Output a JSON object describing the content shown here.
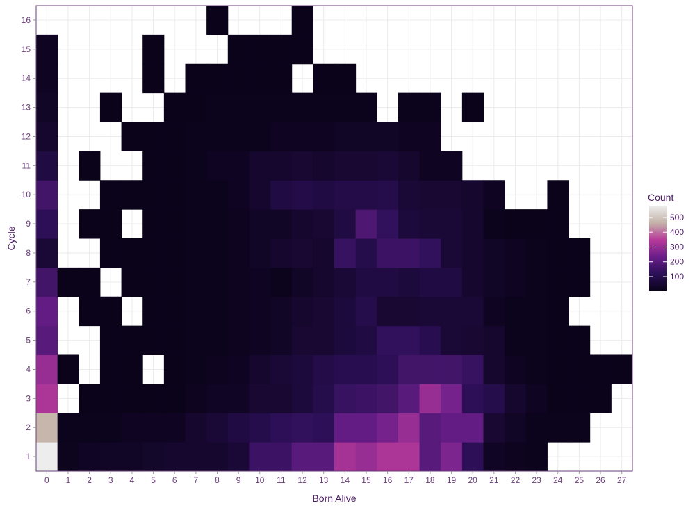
{
  "chart_data": {
    "type": "heatmap",
    "xlabel": "Born Alive",
    "ylabel": "Cycle",
    "x_categories": [
      "0",
      "1",
      "2",
      "3",
      "4",
      "5",
      "6",
      "7",
      "8",
      "9",
      "10",
      "11",
      "12",
      "13",
      "14",
      "15",
      "16",
      "17",
      "18",
      "19",
      "20",
      "21",
      "22",
      "23",
      "24",
      "25",
      "26",
      "27"
    ],
    "y_categories": [
      "1",
      "2",
      "3",
      "4",
      "5",
      "6",
      "7",
      "8",
      "9",
      "10",
      "11",
      "12",
      "13",
      "14",
      "15",
      "16"
    ],
    "grid": true,
    "legend": {
      "title": "Count",
      "position": "right",
      "ticks": [
        "100",
        "200",
        "300",
        "400",
        "500"
      ],
      "range": [
        1,
        580
      ]
    },
    "colors": [
      "#0a0318",
      "#2a0f55",
      "#6a1e8a",
      "#b83a9a",
      "#c4b3a8",
      "#ededed"
    ],
    "panel_border_color": "#6a3d7a",
    "missing_color": "#ffffff",
    "rows": [
      {
        "y": "1",
        "values": [
          580,
          12,
          25,
          28,
          28,
          35,
          40,
          40,
          40,
          60,
          150,
          150,
          200,
          200,
          320,
          300,
          330,
          330,
          200,
          260,
          120,
          25,
          15,
          10,
          null,
          null,
          null,
          null
        ]
      },
      {
        "y": "2",
        "values": [
          470,
          8,
          8,
          8,
          20,
          20,
          20,
          40,
          60,
          80,
          100,
          120,
          130,
          120,
          220,
          220,
          250,
          300,
          200,
          220,
          220,
          50,
          30,
          10,
          8,
          8,
          null,
          null
        ]
      },
      {
        "y": "3",
        "values": [
          330,
          null,
          5,
          5,
          5,
          5,
          5,
          15,
          25,
          25,
          50,
          50,
          70,
          100,
          140,
          150,
          160,
          200,
          300,
          250,
          120,
          100,
          40,
          20,
          5,
          5,
          5,
          null
        ]
      },
      {
        "y": "4",
        "values": [
          300,
          3,
          null,
          5,
          5,
          null,
          5,
          10,
          15,
          20,
          40,
          60,
          70,
          90,
          110,
          110,
          120,
          160,
          160,
          160,
          140,
          40,
          20,
          10,
          5,
          5,
          5,
          5
        ]
      },
      {
        "y": "5",
        "values": [
          200,
          null,
          null,
          5,
          5,
          5,
          5,
          10,
          10,
          15,
          20,
          30,
          50,
          50,
          70,
          80,
          130,
          130,
          110,
          60,
          50,
          40,
          10,
          10,
          5,
          5,
          null,
          null
        ]
      },
      {
        "y": "6",
        "values": [
          220,
          null,
          5,
          5,
          null,
          5,
          5,
          10,
          10,
          15,
          20,
          30,
          40,
          50,
          70,
          100,
          50,
          50,
          60,
          60,
          60,
          20,
          10,
          10,
          5,
          null,
          null,
          null
        ]
      },
      {
        "y": "7",
        "values": [
          160,
          5,
          5,
          null,
          5,
          5,
          5,
          10,
          10,
          15,
          20,
          10,
          30,
          40,
          60,
          80,
          80,
          70,
          80,
          80,
          40,
          30,
          20,
          10,
          5,
          5,
          null,
          null
        ]
      },
      {
        "y": "8",
        "values": [
          60,
          null,
          null,
          5,
          5,
          5,
          5,
          10,
          10,
          15,
          30,
          40,
          50,
          40,
          140,
          100,
          150,
          150,
          130,
          60,
          40,
          30,
          20,
          10,
          5,
          5,
          null,
          null
        ]
      },
      {
        "y": "9",
        "values": [
          120,
          null,
          5,
          5,
          null,
          5,
          5,
          10,
          10,
          15,
          30,
          30,
          40,
          50,
          80,
          180,
          130,
          70,
          60,
          60,
          40,
          10,
          5,
          5,
          5,
          null,
          null,
          null
        ]
      },
      {
        "y": "10",
        "values": [
          160,
          null,
          null,
          5,
          5,
          5,
          5,
          10,
          10,
          20,
          40,
          80,
          90,
          80,
          90,
          90,
          100,
          60,
          50,
          50,
          40,
          20,
          null,
          null,
          5,
          null,
          null,
          null
        ]
      },
      {
        "y": "11",
        "values": [
          80,
          null,
          5,
          null,
          null,
          5,
          5,
          10,
          20,
          20,
          40,
          40,
          50,
          40,
          50,
          50,
          60,
          40,
          20,
          20,
          null,
          null,
          null,
          null,
          null,
          null,
          null,
          null
        ]
      },
      {
        "y": "12",
        "values": [
          40,
          null,
          null,
          null,
          5,
          5,
          5,
          10,
          10,
          10,
          10,
          20,
          20,
          20,
          30,
          30,
          30,
          20,
          20,
          null,
          null,
          null,
          null,
          null,
          null,
          null,
          null,
          null
        ]
      },
      {
        "y": "13",
        "values": [
          30,
          null,
          null,
          5,
          null,
          null,
          5,
          5,
          10,
          10,
          10,
          10,
          10,
          10,
          10,
          10,
          null,
          10,
          10,
          null,
          5,
          null,
          null,
          null,
          null,
          null,
          null,
          null
        ]
      },
      {
        "y": "14",
        "values": [
          20,
          null,
          null,
          null,
          null,
          5,
          null,
          5,
          5,
          5,
          5,
          5,
          null,
          5,
          5,
          null,
          null,
          null,
          null,
          null,
          null,
          null,
          null,
          null,
          null,
          null,
          null,
          null
        ]
      },
      {
        "y": "15",
        "values": [
          20,
          null,
          null,
          null,
          null,
          5,
          null,
          null,
          null,
          5,
          5,
          5,
          5,
          null,
          null,
          null,
          null,
          null,
          null,
          null,
          null,
          null,
          null,
          null,
          null,
          null,
          null,
          null
        ]
      },
      {
        "y": "16",
        "values": [
          null,
          null,
          null,
          null,
          null,
          null,
          null,
          null,
          5,
          null,
          null,
          null,
          5,
          null,
          null,
          null,
          null,
          null,
          null,
          null,
          null,
          null,
          null,
          null,
          null,
          null,
          null,
          null
        ]
      }
    ]
  }
}
